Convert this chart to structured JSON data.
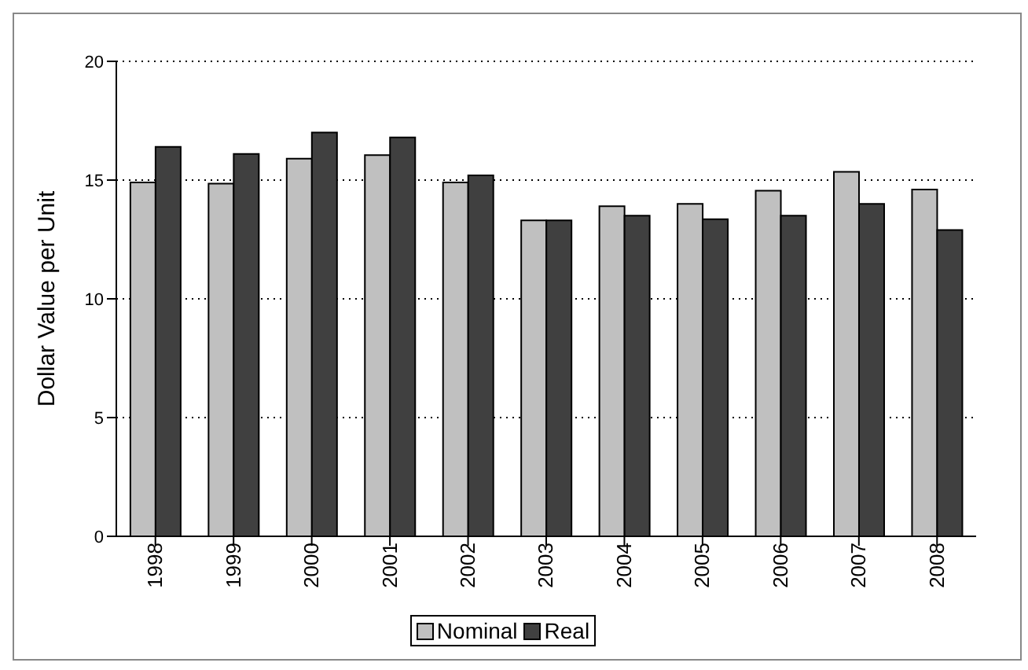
{
  "chart_data": {
    "type": "bar",
    "ylabel": "Dollar Value per Unit",
    "categories": [
      "1998",
      "1999",
      "2000",
      "2001",
      "2002",
      "2003",
      "2004",
      "2005",
      "2006",
      "2007",
      "2008"
    ],
    "series": [
      {
        "name": "Nominal",
        "color": "#c0c0c0",
        "values": [
          14.9,
          14.85,
          15.9,
          16.05,
          14.9,
          13.3,
          13.9,
          14.0,
          14.55,
          15.35,
          14.6
        ]
      },
      {
        "name": "Real",
        "color": "#404040",
        "values": [
          16.4,
          16.1,
          17.0,
          16.8,
          15.2,
          13.3,
          13.5,
          13.35,
          13.5,
          14.0,
          12.9
        ]
      }
    ],
    "ylim": [
      0,
      20
    ],
    "yticks": [
      0,
      5,
      10,
      15,
      20
    ],
    "grid": "y",
    "legend": "bottom"
  }
}
